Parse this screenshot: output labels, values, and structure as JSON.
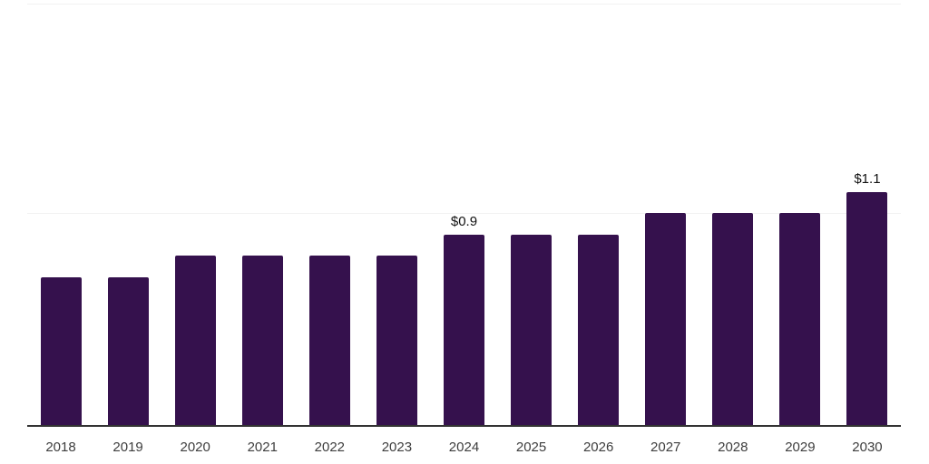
{
  "chart_data": {
    "type": "bar",
    "title": "",
    "xlabel": "",
    "ylabel": "",
    "categories": [
      "2018",
      "2019",
      "2020",
      "2021",
      "2022",
      "2023",
      "2024",
      "2025",
      "2026",
      "2027",
      "2028",
      "2029",
      "2030"
    ],
    "values": [
      0.7,
      0.7,
      0.8,
      0.8,
      0.8,
      0.8,
      0.9,
      0.9,
      0.9,
      1.0,
      1.0,
      1.0,
      1.1
    ],
    "data_labels": {
      "2024": "$0.9",
      "2030": "$1.1"
    },
    "ylim": [
      0,
      2.0
    ],
    "gridline_values": [
      1.0,
      2.0
    ],
    "legend": "none",
    "grid": "horizontal",
    "colors": {
      "bar": "#35114D",
      "axis": "#333333",
      "gridline": "#f2f2f2",
      "tick_label": "#3d3d3d",
      "data_label": "#111111",
      "background": "#ffffff"
    }
  }
}
